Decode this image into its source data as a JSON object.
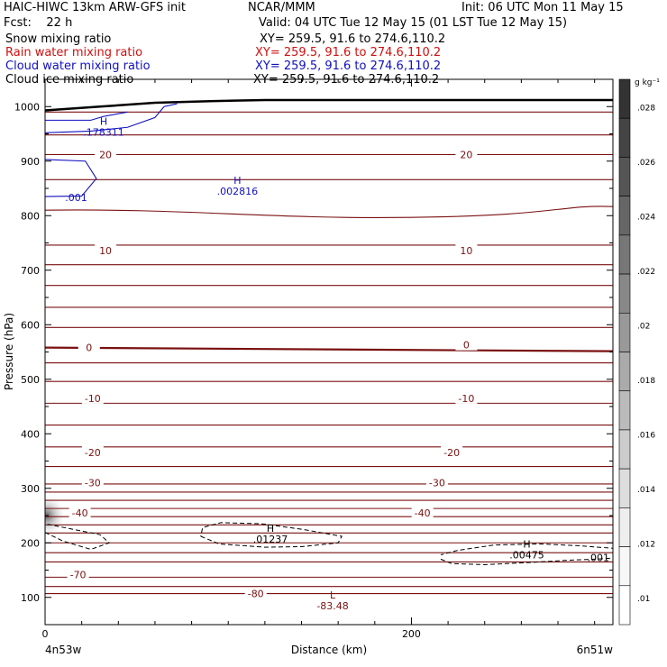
{
  "header": {
    "title_left": "HAIC-HIWC 13km ARW-GFS init",
    "org": "NCAR/MMM",
    "init": "Init: 06 UTC Mon 11 May 15",
    "fcst": "Fcst:    22 h",
    "valid": "Valid: 04 UTC Tue 12 May 15 (01 LST Tue 12 May 15)",
    "fields": [
      {
        "name": "Snow mixing ratio",
        "xy": "XY= 259.5, 91.6 to 274.6,110.2",
        "color": "#000000"
      },
      {
        "name": "Rain water mixing ratio",
        "xy": "XY= 259.5, 91.6 to 274.6,110.2",
        "color": "#d01010"
      },
      {
        "name": "Cloud water mixing ratio",
        "xy": "XY= 259.5, 91.6 to 274.6,110.2",
        "color": "#1010c0"
      },
      {
        "name": "Cloud ice mixing ratio",
        "xy": "XY= 259.5, 91.6 to 274.6,110.2",
        "color": "#000000"
      }
    ]
  },
  "chart_data": {
    "type": "contour",
    "xlabel": "Distance (km)",
    "ylabel": "Pressure (hPa)",
    "xlim": [
      0,
      310
    ],
    "ylim": [
      1050,
      50
    ],
    "x_ticks": [
      "0",
      "200"
    ],
    "y_ticks": [
      "100",
      "200",
      "300",
      "400",
      "500",
      "600",
      "700",
      "800",
      "900",
      "1000"
    ],
    "endpoint_left": "4n53w",
    "endpoint_right": "6n51w",
    "temperature_line_color": "#7a1010",
    "temperature_levels_hpa": [
      107,
      120,
      137,
      165,
      182,
      200,
      218,
      233,
      248,
      263,
      278,
      293,
      308,
      340,
      376,
      416,
      456,
      496,
      530,
      558,
      595,
      632,
      672,
      710,
      746,
      810,
      866,
      912,
      948,
      990
    ],
    "temperature_labels": [
      {
        "text": "-80",
        "x": 115,
        "p": 107
      },
      {
        "text": "-70",
        "x": 18,
        "p": 142
      },
      {
        "text": "-40",
        "x": 19,
        "p": 255
      },
      {
        "text": "-40",
        "x": 206,
        "p": 255
      },
      {
        "text": "-30",
        "x": 26,
        "p": 310
      },
      {
        "text": "-30",
        "x": 214,
        "p": 310
      },
      {
        "text": "-20",
        "x": 26,
        "p": 366
      },
      {
        "text": "-20",
        "x": 222,
        "p": 366
      },
      {
        "text": "-10",
        "x": 26,
        "p": 465
      },
      {
        "text": "-10",
        "x": 230,
        "p": 465
      },
      {
        "text": "0",
        "x": 24,
        "p": 558
      },
      {
        "text": "0",
        "x": 230,
        "p": 563
      },
      {
        "text": "10",
        "x": 33,
        "p": 736
      },
      {
        "text": "10",
        "x": 230,
        "p": 736
      },
      {
        "text": "20",
        "x": 33,
        "p": 912
      },
      {
        "text": "20",
        "x": 230,
        "p": 912
      }
    ],
    "extrema": [
      {
        "kind": "L",
        "value": "-83.48",
        "x": 157,
        "p": 95,
        "color": "#7a1010"
      },
      {
        "kind": "H",
        "value": ".01237",
        "x": 123,
        "p": 217,
        "color": "#000000"
      },
      {
        "kind": "H",
        "value": ".00475",
        "x": 263,
        "p": 188,
        "color": "#000000"
      },
      {
        "kind": "",
        "value": ".001",
        "x": 302,
        "p": 183,
        "color": "#000000"
      },
      {
        "kind": "H",
        "value": ".002816",
        "x": 105,
        "p": 855,
        "color": "#1010c0"
      },
      {
        "kind": "",
        "value": ".001",
        "x": 17,
        "p": 843,
        "color": "#1010c0"
      },
      {
        "kind": "H",
        "value": ".178311",
        "x": 32,
        "p": 963,
        "color": "#1010c0"
      }
    ],
    "ice_contours": [
      {
        "value": 0.001,
        "x": [
          85,
          95,
          120,
          140,
          160,
          162,
          140,
          118,
          96,
          86,
          85
        ],
        "p": [
          212,
          198,
          192,
          193,
          200,
          212,
          225,
          235,
          237,
          228,
          212
        ]
      },
      {
        "value": 0.001,
        "x": [
          0,
          10,
          25,
          35,
          30,
          15,
          0
        ],
        "p": [
          219,
          203,
          188,
          200,
          215,
          225,
          235
        ]
      },
      {
        "value": 0.001,
        "x": [
          216,
          222,
          240,
          265,
          285,
          300,
          310,
          310,
          290,
          270,
          245,
          225,
          216
        ],
        "p": [
          170,
          162,
          160,
          164,
          168,
          170,
          172,
          190,
          195,
          198,
          196,
          186,
          178
        ]
      }
    ],
    "cloud_water_contours": [
      {
        "value": 0.001,
        "x": [
          0,
          20,
          28,
          22,
          0
        ],
        "p": [
          835,
          836,
          868,
          900,
          903
        ]
      },
      {
        "value": 0.01,
        "x": [
          0,
          25,
          45,
          60,
          65,
          72
        ],
        "p": [
          952,
          955,
          962,
          980,
          1000,
          1005
        ]
      },
      {
        "value": 0.1,
        "x": [
          0,
          25,
          32,
          45
        ],
        "p": [
          975,
          975,
          982,
          990
        ]
      }
    ],
    "terrain": {
      "x": [
        0,
        30,
        60,
        90,
        120,
        160,
        200,
        240,
        280,
        310
      ],
      "p": [
        993,
        1000,
        1007,
        1010,
        1012,
        1012,
        1012,
        1012,
        1012,
        1012
      ]
    },
    "colorbar": {
      "label": "g kg⁻¹",
      "ticks": [
        ".028",
        ".026",
        ".024",
        ".022",
        ".02",
        ".018",
        ".016",
        ".014",
        ".012",
        ".01"
      ],
      "colors": [
        "#333333",
        "#444444",
        "#555555",
        "#666666",
        "#777777",
        "#888888",
        "#999999",
        "#aaaaaa",
        "#bbbbbb",
        "#cccccc",
        "#dddddd",
        "#eeeeee",
        "#f7f7f7",
        "#ffffff"
      ]
    }
  }
}
